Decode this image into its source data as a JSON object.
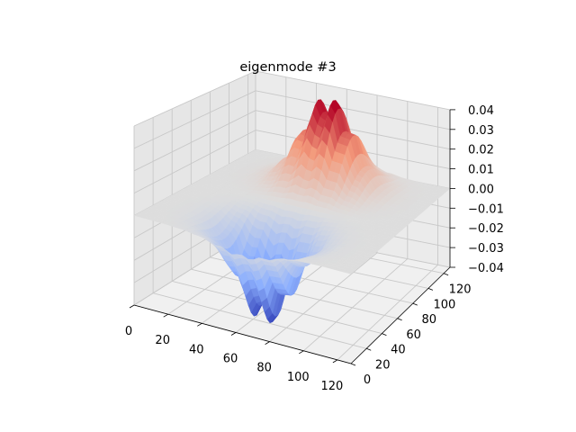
{
  "chart_data": {
    "type": "surface3d",
    "title": "eigenmode #3",
    "xlabel": "",
    "ylabel": "",
    "zlabel": "",
    "x_ticks": [
      "0",
      "20",
      "40",
      "60",
      "80",
      "100",
      "120"
    ],
    "y_ticks": [
      "0",
      "20",
      "40",
      "60",
      "80",
      "100",
      "120"
    ],
    "z_ticks": [
      "−0.04",
      "−0.03",
      "−0.02",
      "−0.01",
      "0.00",
      "0.01",
      "0.02",
      "0.03",
      "0.04"
    ],
    "x_values": [
      0,
      20,
      40,
      60,
      80,
      100,
      120
    ],
    "y_values": [
      0,
      20,
      40,
      60,
      80,
      100,
      120
    ],
    "z_values": [
      -0.04,
      -0.03,
      -0.02,
      -0.01,
      0.0,
      0.01,
      0.02,
      0.03,
      0.04
    ],
    "xlim": [
      0,
      128
    ],
    "ylim": [
      0,
      128
    ],
    "zlim": [
      -0.04,
      0.04
    ],
    "grid": true,
    "colormap": "coolwarm",
    "surface": {
      "grid_size": 128,
      "peak": {
        "x": 64,
        "y": 100,
        "z": 0.04
      },
      "trough": {
        "x": 64,
        "y": 28,
        "z": -0.04
      },
      "baseline_z": 0.0
    }
  }
}
